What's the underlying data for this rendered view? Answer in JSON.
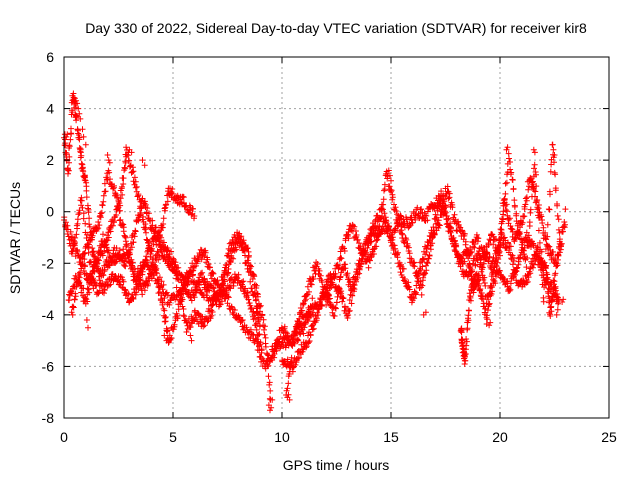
{
  "chart_data": {
    "type": "scatter",
    "title": "Day 330 of 2022, Sidereal Day-to-day VTEC variation (SDTVAR) for receiver kir8",
    "xlabel": "GPS time / hours",
    "ylabel": "SDTVAR / TECUs",
    "xlim": [
      0,
      25
    ],
    "ylim": [
      -8,
      6
    ],
    "xticks": [
      0,
      5,
      10,
      15,
      20,
      25
    ],
    "yticks": [
      -8,
      -6,
      -4,
      -2,
      0,
      2,
      4,
      6
    ],
    "grid": true,
    "marker": "+",
    "color": "#ff0000",
    "tracks": [
      [
        [
          0.0,
          -0.3
        ],
        [
          0.4,
          -1.5
        ],
        [
          0.8,
          0.5
        ],
        [
          1.3,
          -2.5
        ],
        [
          1.8,
          -1.0
        ],
        [
          2.3,
          -2.0
        ],
        [
          2.8,
          -1.5
        ],
        [
          3.3,
          -2.5
        ],
        [
          3.8,
          -2.0
        ],
        [
          4.3,
          -2.5
        ],
        [
          4.8,
          -3.5
        ],
        [
          5.3,
          -3.0
        ],
        [
          5.8,
          -2.5
        ],
        [
          6.3,
          -3.0
        ],
        [
          6.8,
          -3.5
        ],
        [
          7.3,
          -3.0
        ],
        [
          7.8,
          -4.0
        ],
        [
          8.3,
          -4.5
        ],
        [
          8.8,
          -5.0
        ],
        [
          9.2,
          -6.0
        ],
        [
          9.6,
          -5.5
        ],
        [
          10.0,
          -4.5
        ],
        [
          10.5,
          -5.0
        ],
        [
          11.0,
          -4.5
        ],
        [
          11.4,
          -3.5
        ]
      ],
      [
        [
          0.0,
          3.0
        ],
        [
          0.2,
          1.5
        ],
        [
          0.4,
          4.5
        ],
        [
          0.6,
          3.5
        ],
        [
          0.8,
          2.0
        ],
        [
          1.0,
          1.0
        ],
        [
          1.3,
          -1.5
        ],
        [
          1.6,
          -2.5
        ],
        [
          2.0,
          -2.0
        ],
        [
          2.4,
          -1.5
        ],
        [
          2.8,
          -2.0
        ],
        [
          3.2,
          -1.0
        ],
        [
          3.6,
          0.5
        ],
        [
          4.0,
          -0.5
        ],
        [
          4.4,
          -1.0
        ],
        [
          4.8,
          0.8
        ],
        [
          5.2,
          0.5
        ],
        [
          5.6,
          0.3
        ],
        [
          6.0,
          -0.2
        ]
      ],
      [
        [
          0.2,
          -3.5
        ],
        [
          0.6,
          -2.5
        ],
        [
          1.0,
          -3.5
        ],
        [
          1.4,
          -2.0
        ],
        [
          1.8,
          -1.5
        ],
        [
          2.2,
          -0.5
        ],
        [
          2.6,
          0.5
        ],
        [
          2.9,
          2.4
        ],
        [
          3.3,
          1.0
        ],
        [
          3.7,
          -0.5
        ],
        [
          4.1,
          -2.0
        ],
        [
          4.5,
          -3.5
        ],
        [
          4.8,
          -5.0
        ],
        [
          5.2,
          -4.0
        ],
        [
          5.6,
          -2.5
        ],
        [
          6.0,
          -2.0
        ],
        [
          6.4,
          -1.5
        ],
        [
          6.8,
          -2.5
        ],
        [
          7.2,
          -3.0
        ],
        [
          7.6,
          -2.0
        ],
        [
          8.0,
          -1.0
        ],
        [
          8.4,
          -1.5
        ],
        [
          8.8,
          -3.0
        ],
        [
          9.2,
          -4.5
        ],
        [
          9.5,
          -7.5
        ]
      ],
      [
        [
          0.4,
          -3.8
        ],
        [
          0.8,
          -2.0
        ],
        [
          1.2,
          -1.0
        ],
        [
          1.6,
          -0.5
        ],
        [
          2.0,
          1.5
        ],
        [
          2.4,
          0.5
        ],
        [
          2.8,
          -1.0
        ],
        [
          3.2,
          -2.5
        ],
        [
          3.6,
          -3.0
        ],
        [
          4.0,
          -2.5
        ],
        [
          4.4,
          -1.5
        ],
        [
          4.8,
          -2.0
        ],
        [
          5.2,
          -2.5
        ],
        [
          5.6,
          -4.5
        ],
        [
          6.0,
          -4.0
        ],
        [
          6.4,
          -4.3
        ],
        [
          6.8,
          -3.8
        ],
        [
          7.2,
          -2.8
        ],
        [
          7.6,
          -1.5
        ],
        [
          8.0,
          -0.8
        ],
        [
          8.4,
          -2.0
        ],
        [
          8.8,
          -3.5
        ],
        [
          9.0,
          -4.5
        ]
      ],
      [
        [
          9.5,
          -5.5
        ],
        [
          10.0,
          -5.0
        ],
        [
          10.4,
          -5.2
        ],
        [
          10.8,
          -4.0
        ],
        [
          11.2,
          -3.0
        ],
        [
          11.6,
          -2.0
        ],
        [
          12.0,
          -3.5
        ],
        [
          12.4,
          -2.5
        ],
        [
          12.8,
          -1.5
        ],
        [
          13.2,
          -0.5
        ],
        [
          13.6,
          -1.5
        ],
        [
          14.0,
          -2.0
        ],
        [
          14.4,
          -1.0
        ],
        [
          14.8,
          1.5
        ],
        [
          15.2,
          0.0
        ],
        [
          15.6,
          -1.0
        ],
        [
          16.0,
          -2.0
        ],
        [
          16.4,
          -3.0
        ],
        [
          16.8,
          -1.5
        ],
        [
          17.2,
          0.5
        ],
        [
          17.6,
          -0.5
        ],
        [
          18.0,
          -1.5
        ],
        [
          18.4,
          -2.5
        ],
        [
          18.8,
          -2.0
        ],
        [
          19.2,
          -1.5
        ],
        [
          19.6,
          -2.0
        ],
        [
          20.0,
          -2.5
        ],
        [
          20.4,
          -3.0
        ],
        [
          20.8,
          -2.0
        ],
        [
          21.2,
          -1.0
        ],
        [
          21.6,
          -1.5
        ],
        [
          22.0,
          -2.5
        ],
        [
          22.4,
          -3.0
        ],
        [
          22.8,
          -1.0
        ]
      ],
      [
        [
          10.2,
          -7.2
        ],
        [
          10.6,
          -4.5
        ],
        [
          11.0,
          -4.2
        ],
        [
          11.4,
          -3.8
        ],
        [
          11.8,
          -3.5
        ],
        [
          12.2,
          -2.5
        ],
        [
          12.6,
          -3.0
        ],
        [
          13.0,
          -4.0
        ],
        [
          13.4,
          -2.5
        ],
        [
          13.8,
          -1.5
        ],
        [
          14.2,
          -0.5
        ],
        [
          14.6,
          0.0
        ],
        [
          15.0,
          -1.0
        ],
        [
          15.4,
          -0.3
        ],
        [
          15.8,
          -0.5
        ],
        [
          16.2,
          0.0
        ],
        [
          16.6,
          -0.2
        ],
        [
          17.0,
          0.3
        ],
        [
          17.4,
          0.5
        ],
        [
          17.8,
          -1.0
        ],
        [
          18.2,
          -2.0
        ],
        [
          18.6,
          -1.5
        ],
        [
          19.0,
          -1.0
        ],
        [
          19.4,
          -3.5
        ],
        [
          19.8,
          -2.5
        ],
        [
          20.2,
          0.5
        ],
        [
          20.6,
          -1.0
        ],
        [
          21.0,
          -0.5
        ],
        [
          21.4,
          1.5
        ],
        [
          21.8,
          0.0
        ],
        [
          22.2,
          -1.5
        ],
        [
          22.6,
          -2.0
        ],
        [
          23.0,
          -0.3
        ]
      ],
      [
        [
          10.0,
          -5.8
        ],
        [
          10.4,
          -6.0
        ],
        [
          10.8,
          -5.5
        ],
        [
          11.2,
          -5.0
        ],
        [
          11.6,
          -4.0
        ],
        [
          12.0,
          -3.0
        ],
        [
          12.4,
          -4.0
        ],
        [
          12.8,
          -2.0
        ],
        [
          13.2,
          -3.0
        ],
        [
          13.6,
          -2.0
        ],
        [
          14.0,
          -1.0
        ],
        [
          14.4,
          -0.8
        ],
        [
          14.8,
          -0.5
        ],
        [
          15.2,
          -1.5
        ],
        [
          15.6,
          -2.5
        ],
        [
          16.0,
          -3.5
        ],
        [
          16.4,
          -2.0
        ],
        [
          16.8,
          -1.0
        ],
        [
          17.2,
          -0.5
        ],
        [
          17.6,
          0.8
        ],
        [
          18.0,
          -0.5
        ],
        [
          18.4,
          -1.0
        ],
        [
          18.8,
          -3.0
        ],
        [
          19.2,
          -2.0
        ],
        [
          19.6,
          -1.0
        ],
        [
          20.0,
          -1.5
        ],
        [
          20.4,
          2.2
        ],
        [
          20.8,
          -0.5
        ],
        [
          21.2,
          -2.0
        ],
        [
          21.6,
          2.0
        ],
        [
          22.0,
          -3.5
        ],
        [
          22.4,
          2.5
        ],
        [
          22.8,
          -1.5
        ]
      ],
      [
        [
          0.3,
          -1.0
        ],
        [
          0.7,
          -1.8
        ],
        [
          1.1,
          -2.5
        ],
        [
          1.5,
          -3.0
        ],
        [
          1.9,
          -3.0
        ],
        [
          2.3,
          -2.5
        ],
        [
          2.7,
          -2.8
        ],
        [
          3.1,
          -3.5
        ],
        [
          3.5,
          -2.5
        ],
        [
          3.9,
          -1.5
        ],
        [
          4.3,
          -1.0
        ],
        [
          4.7,
          -1.5
        ],
        [
          5.1,
          -2.0
        ],
        [
          5.5,
          -2.8
        ],
        [
          5.9,
          -3.3
        ],
        [
          6.3,
          -2.5
        ],
        [
          6.7,
          -3.0
        ],
        [
          7.1,
          -3.5
        ],
        [
          7.5,
          -3.0
        ],
        [
          7.9,
          -2.5
        ],
        [
          8.3,
          -3.0
        ],
        [
          8.7,
          -4.0
        ],
        [
          9.1,
          -5.5
        ]
      ],
      [
        [
          18.2,
          -4.5
        ],
        [
          18.3,
          -5.3
        ],
        [
          18.4,
          -5.8
        ],
        [
          18.6,
          -3.5
        ],
        [
          18.8,
          -2.5
        ],
        [
          19.1,
          -3.0
        ],
        [
          19.4,
          -4.2
        ],
        [
          19.7,
          -2.0
        ],
        [
          20.1,
          -1.0
        ],
        [
          20.5,
          -1.5
        ],
        [
          20.9,
          -3.0
        ],
        [
          21.3,
          -2.5
        ],
        [
          21.7,
          -1.5
        ],
        [
          22.1,
          -2.0
        ],
        [
          22.3,
          -4.0
        ],
        [
          22.5,
          -3.0
        ],
        [
          22.7,
          -3.5
        ]
      ]
    ],
    "scatter_points": [
      [
        0.05,
        2.8
      ],
      [
        0.1,
        2.9
      ],
      [
        0.15,
        3.0
      ],
      [
        0.5,
        4.4
      ],
      [
        0.55,
        4.3
      ],
      [
        0.6,
        4.2
      ],
      [
        0.65,
        4.0
      ],
      [
        0.7,
        3.8
      ],
      [
        0.75,
        3.6
      ],
      [
        0.85,
        3.2
      ],
      [
        0.9,
        2.9
      ],
      [
        1.0,
        2.6
      ],
      [
        2.0,
        2.2
      ],
      [
        2.05,
        2.0
      ],
      [
        2.1,
        1.9
      ],
      [
        2.85,
        2.5
      ],
      [
        3.0,
        2.4
      ],
      [
        3.1,
        2.3
      ],
      [
        3.6,
        2.0
      ],
      [
        3.7,
        1.8
      ],
      [
        0.4,
        -4.0
      ],
      [
        0.35,
        -3.9
      ],
      [
        1.1,
        -4.5
      ],
      [
        1.05,
        -4.2
      ],
      [
        4.6,
        -4.8
      ],
      [
        4.7,
        -5.0
      ],
      [
        4.75,
        -4.9
      ],
      [
        5.8,
        -4.8
      ],
      [
        5.85,
        -5.0
      ],
      [
        9.4,
        -7.5
      ],
      [
        9.45,
        -7.7
      ],
      [
        9.5,
        -7.6
      ],
      [
        9.55,
        -7.3
      ],
      [
        10.25,
        -7.2
      ],
      [
        10.3,
        -7.1
      ],
      [
        10.35,
        -7.3
      ],
      [
        10.5,
        -6.2
      ],
      [
        10.55,
        -6.0
      ],
      [
        14.9,
        1.6
      ],
      [
        14.95,
        1.4
      ],
      [
        15.0,
        1.2
      ],
      [
        16.5,
        -4.0
      ],
      [
        16.6,
        -3.9
      ],
      [
        17.3,
        0.8
      ],
      [
        17.5,
        0.9
      ],
      [
        19.5,
        -4.4
      ],
      [
        19.55,
        -4.3
      ],
      [
        20.3,
        2.4
      ],
      [
        20.35,
        2.5
      ],
      [
        21.55,
        2.4
      ],
      [
        21.6,
        2.3
      ],
      [
        22.4,
        2.6
      ],
      [
        22.45,
        2.4
      ],
      [
        22.5,
        2.2
      ],
      [
        22.6,
        -4.0
      ],
      [
        22.65,
        -3.8
      ],
      [
        22.85,
        -3.5
      ],
      [
        22.9,
        -3.4
      ],
      [
        22.95,
        -0.4
      ],
      [
        23.0,
        0.1
      ]
    ]
  }
}
